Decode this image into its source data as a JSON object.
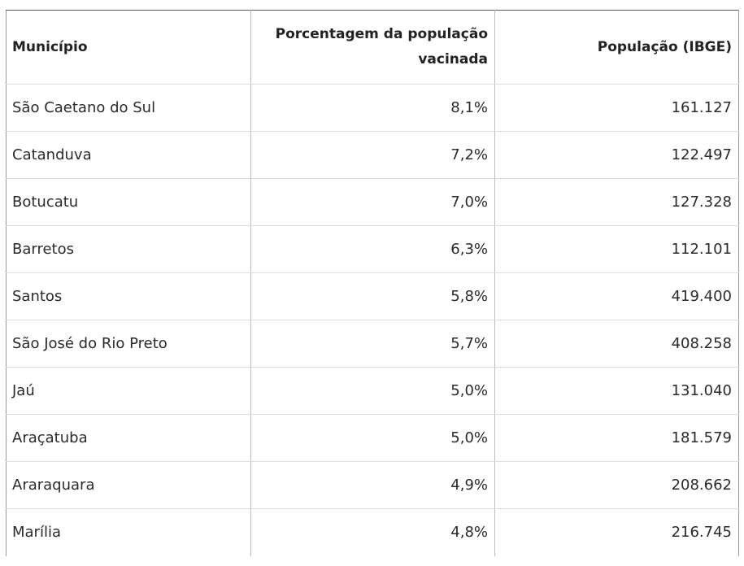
{
  "table": {
    "headers": [
      "Município",
      "Porcentagem da população vacinada",
      "População (IBGE)"
    ],
    "rows": [
      [
        "São Caetano do Sul",
        "8,1%",
        "161.127"
      ],
      [
        "Catanduva",
        "7,2%",
        "122.497"
      ],
      [
        "Botucatu",
        "7,0%",
        "127.328"
      ],
      [
        "Barretos",
        "6,3%",
        "112.101"
      ],
      [
        "Santos",
        "5,8%",
        "419.400"
      ],
      [
        "São José do Rio Preto",
        "5,7%",
        "408.258"
      ],
      [
        "Jaú",
        "5,0%",
        "131.040"
      ],
      [
        "Araçatuba",
        "5,0%",
        "181.579"
      ],
      [
        "Araraquara",
        "4,9%",
        "208.662"
      ],
      [
        "Marília",
        "4,8%",
        "216.745"
      ]
    ]
  }
}
